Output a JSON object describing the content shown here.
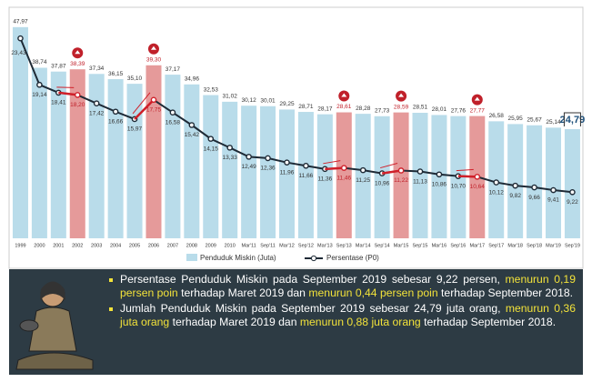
{
  "chart_data": {
    "type": "bar-line",
    "categories": [
      "1999",
      "2000",
      "2001",
      "2002",
      "2003",
      "2004",
      "2005",
      "2006",
      "2007",
      "2008",
      "2009",
      "2010",
      "Mar'11",
      "Sep'11",
      "Mar'12",
      "Sep'12",
      "Mar'13",
      "Sep'13",
      "Mar'14",
      "Sep'14",
      "Mar'15",
      "Sep'15",
      "Mar'16",
      "Sep'16",
      "Mar'17",
      "Sep'17",
      "Mar'18",
      "Sep'18",
      "Mar'19",
      "Sep'19"
    ],
    "series": [
      {
        "name": "Penduduk Miskin (Juta)",
        "color": "#b9dcea",
        "colors": [
          "#b9dcea",
          "#b9dcea",
          "#b9dcea",
          "#e59a9a",
          "#b9dcea",
          "#b9dcea",
          "#b9dcea",
          "#e59a9a",
          "#b9dcea",
          "#b9dcea",
          "#b9dcea",
          "#b9dcea",
          "#b9dcea",
          "#b9dcea",
          "#b9dcea",
          "#b9dcea",
          "#b9dcea",
          "#e59a9a",
          "#b9dcea",
          "#b9dcea",
          "#e59a9a",
          "#b9dcea",
          "#b9dcea",
          "#b9dcea",
          "#e59a9a",
          "#b9dcea",
          "#b9dcea",
          "#b9dcea",
          "#b9dcea",
          "#b9dcea"
        ],
        "values": [
          47.97,
          38.74,
          37.87,
          38.39,
          37.34,
          36.15,
          35.1,
          39.3,
          37.17,
          34.96,
          32.53,
          31.02,
          30.12,
          30.01,
          29.25,
          28.71,
          28.17,
          28.61,
          28.28,
          27.73,
          28.59,
          28.51,
          28.01,
          27.76,
          27.77,
          26.58,
          25.95,
          25.67,
          25.14,
          24.79
        ],
        "value_labels": [
          "47,97",
          "38,74",
          "37,87",
          "38,39",
          "37,34",
          "36,15",
          "35,10",
          "39,30",
          "37,17",
          "34,96",
          "32,53",
          "31,02",
          "30,12",
          "30,01",
          "29,25",
          "28,71",
          "28,17",
          "28,61",
          "28,28",
          "27,73",
          "28,59",
          "28,51",
          "28,01",
          "27,76",
          "27,77",
          "26,58",
          "25,95",
          "25,67",
          "25,14",
          "24,79"
        ]
      },
      {
        "name": "Persentase (P0)",
        "color": "#1e2a36",
        "values": [
          23.43,
          19.14,
          18.41,
          18.2,
          17.42,
          16.66,
          15.97,
          17.75,
          16.58,
          15.42,
          14.15,
          13.33,
          12.49,
          12.36,
          11.96,
          11.66,
          11.36,
          11.46,
          11.25,
          10.96,
          11.22,
          11.13,
          10.86,
          10.7,
          10.64,
          10.12,
          9.82,
          9.66,
          9.41,
          9.22
        ],
        "value_labels": [
          "23,43",
          "19,14",
          "18,41",
          "18,20",
          "17,42",
          "16,66",
          "15,97",
          "17,75",
          "16,58",
          "15,42",
          "14,15",
          "13,33",
          "12,49",
          "12,36",
          "11,96",
          "11,66",
          "11,36",
          "11,46",
          "11,25",
          "10,96",
          "11,22",
          "11,13",
          "10,86",
          "10,70",
          "10,64",
          "10,12",
          "9,82",
          "9,66",
          "9,41",
          "9,22"
        ]
      }
    ]
  },
  "notes": [
    [
      {
        "text": "Persentase Penduduk Miskin pada September 2019 sebesar 9,22 persen, ",
        "hl": false
      },
      {
        "text": "menurun 0,19 persen poin",
        "hl": true
      },
      {
        "text": " terhadap Maret 2019 dan ",
        "hl": false
      },
      {
        "text": "menurun 0,44 persen poin",
        "hl": true
      },
      {
        "text": " terhadap September 2018.",
        "hl": false
      }
    ],
    [
      {
        "text": "Jumlah Penduduk Miskin pada September 2019 sebesar 24,79 juta orang, ",
        "hl": false
      },
      {
        "text": "menurun 0,36 juta orang",
        "hl": true
      },
      {
        "text": " terhadap Maret 2019 dan ",
        "hl": false
      },
      {
        "text": "menurun 0,88 juta orang",
        "hl": true
      },
      {
        "text": " terhadap September 2018.",
        "hl": false
      }
    ]
  ]
}
